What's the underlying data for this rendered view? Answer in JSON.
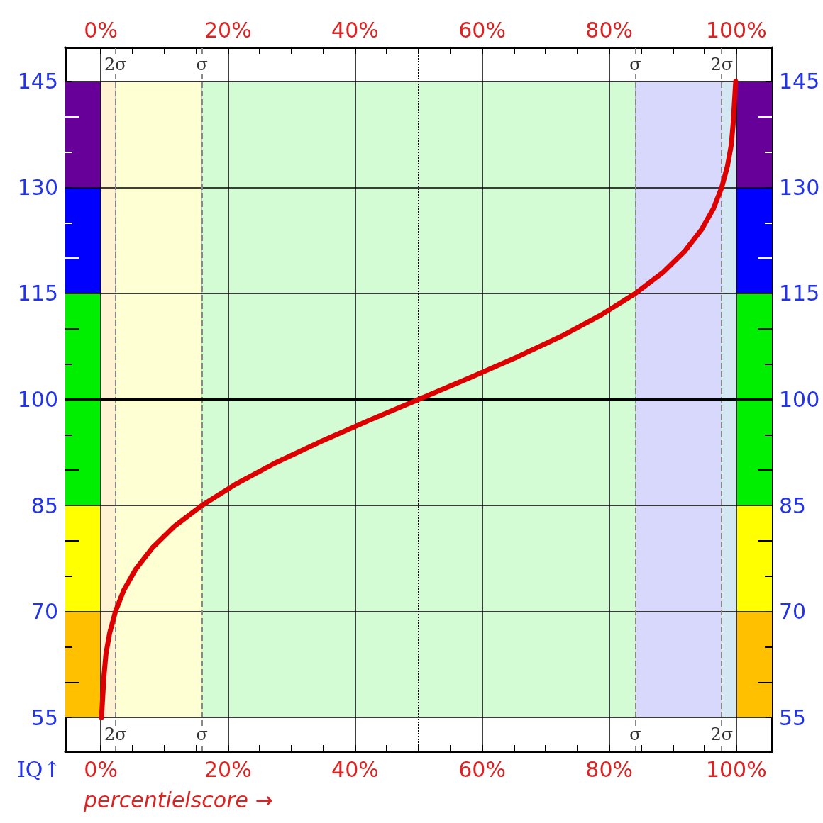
{
  "chart_data": {
    "type": "line",
    "xlabel": "percentielscore →",
    "ylabel": "IQ↑",
    "xlim": [
      -5.6,
      105.6
    ],
    "ylim": [
      50.2,
      149.8
    ],
    "x2lim": [
      -5.6,
      105.6
    ],
    "y2lim": [
      50.2,
      149.8
    ],
    "xticks": [
      {
        "value": 0,
        "label": "0%"
      },
      {
        "value": 5,
        "label": null
      },
      {
        "value": 10,
        "label": null
      },
      {
        "value": 15,
        "label": null
      },
      {
        "value": 20,
        "label": "20%"
      },
      {
        "value": 25,
        "label": null
      },
      {
        "value": 30,
        "label": null
      },
      {
        "value": 35,
        "label": null
      },
      {
        "value": 40,
        "label": "40%"
      },
      {
        "value": 45,
        "label": null
      },
      {
        "value": 50,
        "label": null
      },
      {
        "value": 55,
        "label": null
      },
      {
        "value": 60,
        "label": "60%"
      },
      {
        "value": 65,
        "label": null
      },
      {
        "value": 70,
        "label": null
      },
      {
        "value": 75,
        "label": null
      },
      {
        "value": 80,
        "label": "80%"
      },
      {
        "value": 85,
        "label": null
      },
      {
        "value": 90,
        "label": null
      },
      {
        "value": 95,
        "label": null
      },
      {
        "value": 100,
        "label": "100%"
      }
    ],
    "x2ticks": [
      {
        "value": 0,
        "label": "0%"
      },
      {
        "value": 5,
        "label": null
      },
      {
        "value": 10,
        "label": null
      },
      {
        "value": 15,
        "label": null
      },
      {
        "value": 20,
        "label": "20%"
      },
      {
        "value": 25,
        "label": null
      },
      {
        "value": 30,
        "label": null
      },
      {
        "value": 35,
        "label": null
      },
      {
        "value": 40,
        "label": "40%"
      },
      {
        "value": 45,
        "label": null
      },
      {
        "value": 50,
        "label": null
      },
      {
        "value": 55,
        "label": null
      },
      {
        "value": 60,
        "label": "60%"
      },
      {
        "value": 65,
        "label": null
      },
      {
        "value": 70,
        "label": null
      },
      {
        "value": 75,
        "label": null
      },
      {
        "value": 80,
        "label": "80%"
      },
      {
        "value": 85,
        "label": null
      },
      {
        "value": 90,
        "label": null
      },
      {
        "value": 95,
        "label": null
      },
      {
        "value": 100,
        "label": "100%"
      }
    ],
    "yticks": [
      55,
      {
        "value": 60,
        "label": null
      },
      {
        "value": 65,
        "label": null
      },
      70,
      {
        "value": 75,
        "label": null
      },
      {
        "value": 80,
        "label": null
      },
      85,
      {
        "value": 90,
        "label": null
      },
      {
        "value": 95,
        "label": null
      },
      100,
      {
        "value": 105,
        "label": null
      },
      {
        "value": 110,
        "label": null
      },
      115,
      {
        "value": 120,
        "label": null
      },
      {
        "value": 125,
        "label": null
      },
      130,
      {
        "value": 135,
        "label": null
      },
      {
        "value": 140,
        "label": null
      },
      145
    ],
    "y2ticks": [
      55,
      {
        "value": 60,
        "label": null
      },
      {
        "value": 65,
        "label": null
      },
      70,
      {
        "value": 75,
        "label": null
      },
      {
        "value": 80,
        "label": null
      },
      85,
      {
        "value": 90,
        "label": null
      },
      {
        "value": 95,
        "label": null
      },
      100,
      {
        "value": 105,
        "label": null
      },
      {
        "value": 110,
        "label": null
      },
      115,
      {
        "value": 120,
        "label": null
      },
      {
        "value": 125,
        "label": null
      },
      130,
      {
        "value": 135,
        "label": null
      },
      {
        "value": 140,
        "label": null
      },
      145
    ],
    "grid": true,
    "marker": "none",
    "series": [
      {
        "color": "#dd0000",
        "x": [
          0.1,
          0.3,
          0.5,
          0.8,
          1.4,
          2.3,
          3.6,
          5.5,
          8.1,
          11.5,
          15.9,
          21.2,
          27.4,
          34.5,
          42.1,
          50,
          57.9,
          65.5,
          72.6,
          78.8,
          84.1,
          88.5,
          91.9,
          94.5,
          96.4,
          97.7,
          98.6,
          99.2,
          99.5,
          99.7,
          99.9
        ],
        "values": [
          55,
          58,
          61,
          64,
          67,
          70,
          73,
          76,
          79,
          82,
          85,
          88,
          91,
          94,
          97,
          100,
          103,
          106,
          109,
          112,
          115,
          118,
          121,
          124,
          127,
          130,
          133,
          136,
          139,
          142,
          145
        ]
      }
    ],
    "bands": [
      {
        "axis": "x",
        "from": 0,
        "to": 2.3,
        "color": "#fff3d4"
      },
      {
        "axis": "x",
        "from": 2.3,
        "to": 15.9,
        "color": "#ffffd4"
      },
      {
        "axis": "x",
        "from": 15.9,
        "to": 84.1,
        "color": "#d4fcd4"
      },
      {
        "axis": "x",
        "from": 84.1,
        "to": 97.7,
        "color": "#d8d8fc"
      },
      {
        "axis": "x",
        "from": 97.7,
        "to": 100,
        "color": "#d4e8f4"
      },
      {
        "axis": "y",
        "from": 55,
        "to": 70,
        "color": "#ffc000"
      },
      {
        "axis": "y",
        "from": 70,
        "to": 85,
        "color": "#ffff00"
      },
      {
        "axis": "y",
        "from": 85,
        "to": 115,
        "color": "#00ee00"
      },
      {
        "axis": "y",
        "from": 115,
        "to": 130,
        "color": "#0000ff"
      },
      {
        "axis": "y",
        "from": 130,
        "to": 145,
        "color": "#660099"
      }
    ],
    "ref_lines": [
      {
        "axis": "x",
        "value": 2.3,
        "label": "2σ",
        "color": "#888888",
        "line_style": "dashed"
      },
      {
        "axis": "x",
        "value": 15.9,
        "label": "σ",
        "color": "#888888",
        "line_style": "dashed"
      },
      {
        "axis": "x",
        "value": 84.1,
        "label": "σ",
        "color": "#888888",
        "line_style": "dashed"
      },
      {
        "axis": "x",
        "value": 97.7,
        "label": "2σ",
        "color": "#888888",
        "line_style": "dashed"
      },
      {
        "axis": "x",
        "value": 50,
        "color": "#000000",
        "line_style": "dotted"
      },
      {
        "axis": "y",
        "value": 100,
        "color": "#000000",
        "line_style": "solid"
      }
    ]
  }
}
